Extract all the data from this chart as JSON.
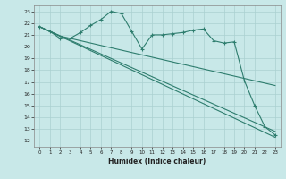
{
  "xlabel": "Humidex (Indice chaleur)",
  "line_color": "#2e7d6e",
  "bg_color": "#c8e8e8",
  "grid_color": "#aad0d0",
  "ylim": [
    11.5,
    23.5
  ],
  "xlim": [
    -0.5,
    23.5
  ],
  "yticks": [
    12,
    13,
    14,
    15,
    16,
    17,
    18,
    19,
    20,
    21,
    22,
    23
  ],
  "xticks": [
    0,
    1,
    2,
    3,
    4,
    5,
    6,
    7,
    8,
    9,
    10,
    11,
    12,
    13,
    14,
    15,
    16,
    17,
    18,
    19,
    20,
    21,
    22,
    23
  ],
  "line1_x": [
    0,
    1,
    2,
    3,
    4,
    5,
    6,
    7,
    8,
    9,
    10,
    11,
    12,
    13,
    14,
    15,
    16,
    17,
    18,
    19,
    20,
    21,
    22,
    23
  ],
  "line1_y": [
    21.7,
    21.3,
    20.7,
    20.7,
    21.2,
    21.8,
    22.3,
    23.0,
    22.8,
    21.3,
    19.8,
    21.0,
    21.0,
    21.1,
    21.2,
    21.4,
    21.5,
    20.5,
    20.3,
    20.4,
    17.1,
    15.0,
    13.2,
    12.5
  ],
  "line2_x": [
    0,
    2,
    3,
    4,
    5,
    6,
    7,
    8,
    9,
    10,
    11,
    12,
    13,
    14,
    15,
    16,
    17,
    18,
    19,
    20,
    21,
    22,
    23
  ],
  "line2_y": [
    21.7,
    20.9,
    20.7,
    20.5,
    20.3,
    20.1,
    19.9,
    19.7,
    19.5,
    19.3,
    19.1,
    18.9,
    18.7,
    18.5,
    18.3,
    18.1,
    17.9,
    17.7,
    17.5,
    17.3,
    17.1,
    16.9,
    16.7
  ],
  "line3_x": [
    0,
    23
  ],
  "line3_y": [
    21.7,
    12.3
  ],
  "line4_x": [
    0,
    23
  ],
  "line4_y": [
    21.7,
    12.8
  ]
}
